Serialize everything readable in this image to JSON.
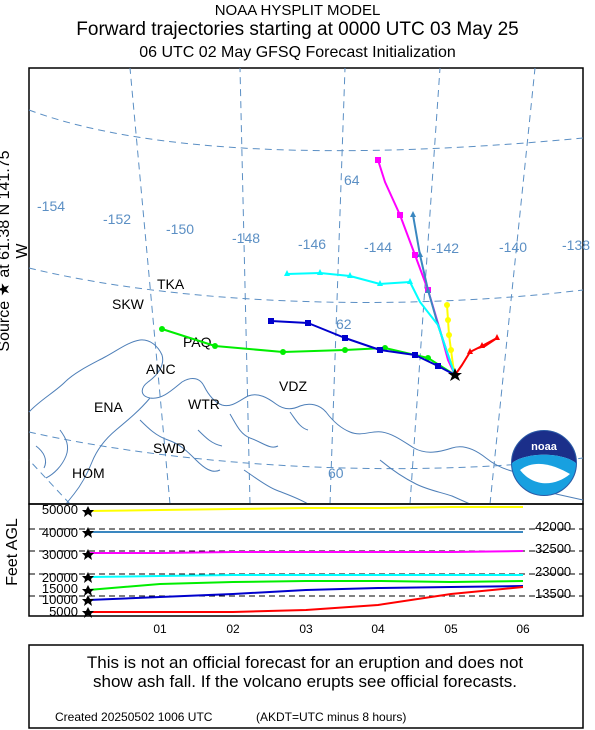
{
  "header": {
    "line1": "NOAA HYSPLIT MODEL",
    "line2": "Forward trajectories starting at 0000 UTC 03 May 25",
    "line3": "06 UTC 02 May    GFSQ  Forecast Initialization"
  },
  "map": {
    "source_label": "Source ★  at   61.38 N  141.75 W",
    "longitudes": [
      "-154",
      "-152",
      "-150",
      "-148",
      "-146",
      "-144",
      "-142",
      "-140",
      "-138"
    ],
    "latitudes": [
      "64",
      "62",
      "60"
    ],
    "stations": [
      "TKA",
      "SKW",
      "PAQ",
      "ANC",
      "VDZ",
      "ENA",
      "WTR",
      "SWD",
      "HOM"
    ],
    "logo_text": "noaa",
    "colors": {
      "grid": "#5b8fc4",
      "coast": "#4e7fb8"
    }
  },
  "profile": {
    "y_axis_label": "Feet AGL",
    "y_ticks": [
      "50000",
      "40000",
      "30000",
      "20000",
      "15000",
      "10000",
      "5000"
    ],
    "x_ticks": [
      "01",
      "02",
      "03",
      "04",
      "05",
      "06"
    ],
    "right_labels": [
      "42000",
      "32500",
      "23000",
      "13500"
    ]
  },
  "trajectories": [
    {
      "color": "#ffff00",
      "marker": "circle"
    },
    {
      "color": "#3a87c0",
      "marker": "triangle"
    },
    {
      "color": "#ff00ff",
      "marker": "square"
    },
    {
      "color": "#00ffff",
      "marker": "triangle"
    },
    {
      "color": "#00ee00",
      "marker": "circle"
    },
    {
      "color": "#0000cc",
      "marker": "square"
    },
    {
      "color": "#ff0000",
      "marker": "triangle"
    }
  ],
  "disclaimer": {
    "line1": "This is not an official forecast for an eruption and does not",
    "line2": "show ash fall. If the volcano erupts see official forecasts."
  },
  "footer": {
    "created": "Created 20250502 1006 UTC",
    "timezone": "(AKDT=UTC minus 8 hours)"
  }
}
